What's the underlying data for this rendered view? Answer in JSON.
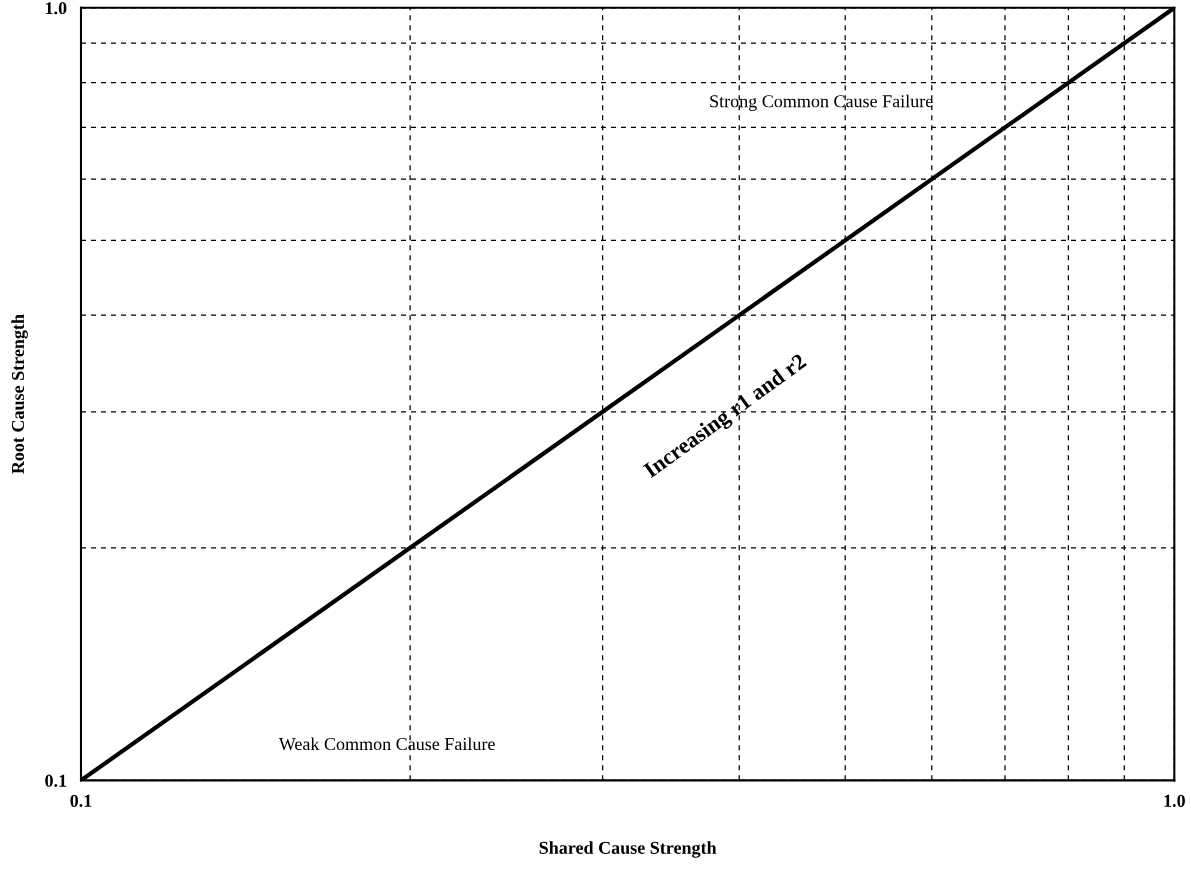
{
  "chart_data": {
    "type": "line",
    "xlabel": "Shared Cause Strength",
    "ylabel": "Root Cause Strength",
    "x": [
      0.1,
      1.0
    ],
    "series": [
      {
        "color": "#000000",
        "values": [
          0.1,
          1.0
        ]
      }
    ],
    "log": "xy",
    "xlim": [
      0.1,
      1.0
    ],
    "ylim": [
      0.1,
      1.0
    ],
    "xticks": [
      0.1,
      {
        "value": 0.2,
        "label": null
      },
      {
        "value": 0.3,
        "label": null
      },
      {
        "value": 0.4,
        "label": null
      },
      {
        "value": 0.5,
        "label": null
      },
      {
        "value": 0.6,
        "label": null
      },
      {
        "value": 0.7,
        "label": null
      },
      {
        "value": 0.8,
        "label": null
      },
      {
        "value": 0.9,
        "label": null
      },
      {
        "value": 1.0,
        "label": "1.0"
      }
    ],
    "yticks": [
      0.1,
      {
        "value": 0.2,
        "label": null
      },
      {
        "value": 0.3,
        "label": null
      },
      {
        "value": 0.4,
        "label": null
      },
      {
        "value": 0.5,
        "label": null
      },
      {
        "value": 0.6,
        "label": null
      },
      {
        "value": 0.7,
        "label": null
      },
      {
        "value": 0.8,
        "label": null
      },
      {
        "value": 0.9,
        "label": null
      },
      {
        "value": 1.0,
        "label": "1.0"
      }
    ],
    "grid": true,
    "line_style": "solid",
    "marker": "none",
    "legend": false,
    "annotations": [
      "Strong Common Cause Failure",
      "Increasing r1 and r2",
      "Weak Common Cause Failure"
    ]
  }
}
